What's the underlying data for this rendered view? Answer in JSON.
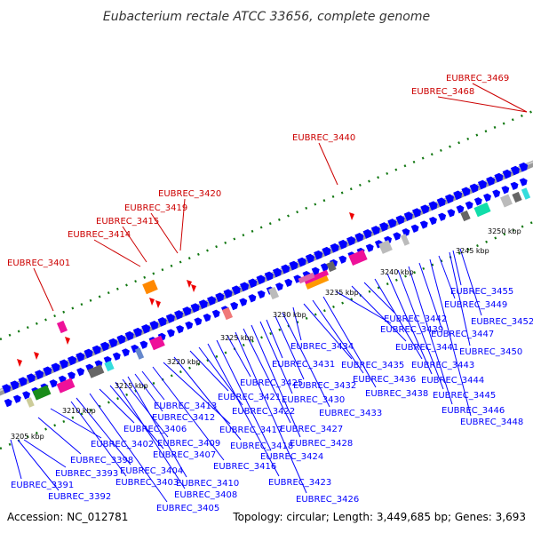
{
  "title": "Eubacterium rectale ATCC 33656, complete genome",
  "footer": {
    "accession": "Accession: NC_012781",
    "summary": "Topology: circular; Length: 3,449,685 bp; Genes: 3,693"
  },
  "colors": {
    "cds": "#0000ff",
    "rna_label": "#cc0000",
    "tick": "#117711",
    "backbone": "#8c8c8c",
    "leader_blue": "#0000ff",
    "leader_red": "#cc0000"
  },
  "ticks": [
    "3205 kbp",
    "3210 kbp",
    "3215 kbp",
    "3220 kbp",
    "3225 kbp",
    "3230 kbp",
    "3235 kbp",
    "3240 kbp",
    "3245 kbp",
    "3250 kbp"
  ],
  "red_labels": [
    "EUBREC_3401",
    "EUBREC_3414",
    "EUBREC_3415",
    "EUBREC_3419",
    "EUBREC_3420",
    "EUBREC_3440",
    "EUBREC_3468",
    "EUBREC_3469"
  ],
  "blue_labels": [
    "EUBREC_3391",
    "EUBREC_3392",
    "EUBREC_3393",
    "EUBREC_3398",
    "EUBREC_3402",
    "EUBREC_3403",
    "EUBREC_3404",
    "EUBREC_3405",
    "EUBREC_3406",
    "EUBREC_3407",
    "EUBREC_3408",
    "EUBREC_3409",
    "EUBREC_3410",
    "EUBREC_3412",
    "EUBREC_3413",
    "EUBREC_3416",
    "EUBREC_3417",
    "EUBREC_3418",
    "EUBREC_3421",
    "EUBREC_3422",
    "EUBREC_3423",
    "EUBREC_3424",
    "EUBREC_3425",
    "EUBREC_3426",
    "EUBREC_3427",
    "EUBREC_3428",
    "EUBREC_3430",
    "EUBREC_3431",
    "EUBREC_3432",
    "EUBREC_3433",
    "EUBREC_3434",
    "EUBREC_3435",
    "EUBREC_3436",
    "EUBREC_3438",
    "EUBREC_3439",
    "EUBREC_3441",
    "EUBREC_3442",
    "EUBREC_3443",
    "EUBREC_3444",
    "EUBREC_3445",
    "EUBREC_3446",
    "EUBREC_3447",
    "EUBREC_3448",
    "EUBREC_3449",
    "EUBREC_3450",
    "EUBREC_3452",
    "EUBREC_3455"
  ]
}
